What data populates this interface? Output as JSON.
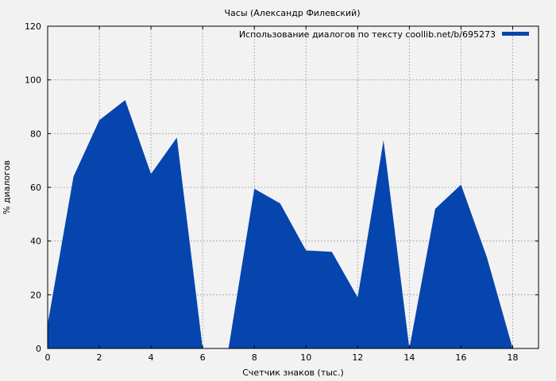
{
  "chart_data": {
    "type": "area",
    "title": "Часы (Александр Филевский)",
    "xlabel": "Счетчик знаков (тыс.)",
    "ylabel": "% диалогов",
    "xlim": [
      0,
      19
    ],
    "ylim": [
      0,
      120
    ],
    "x_ticks": [
      0,
      2,
      4,
      6,
      8,
      10,
      12,
      14,
      16,
      18
    ],
    "y_ticks": [
      0,
      20,
      40,
      60,
      80,
      100,
      120
    ],
    "grid": true,
    "legend_position": "top-right",
    "series": [
      {
        "name": "Использование диалогов по тексту coollib.net/b/695273",
        "color": "#0645ad",
        "segments": [
          [
            [
              0,
              9
            ],
            [
              1,
              64
            ],
            [
              2,
              85
            ],
            [
              3,
              92.5
            ],
            [
              4,
              65
            ],
            [
              5,
              78.5
            ],
            [
              6,
              0
            ]
          ],
          [
            [
              7,
              0
            ],
            [
              8,
              59.5
            ],
            [
              9,
              54
            ],
            [
              10,
              36.5
            ],
            [
              11,
              36
            ],
            [
              12,
              19
            ],
            [
              13,
              77.5
            ],
            [
              14,
              0
            ],
            [
              15,
              52
            ],
            [
              16,
              61
            ],
            [
              17,
              34
            ],
            [
              18,
              0
            ]
          ]
        ]
      }
    ]
  }
}
